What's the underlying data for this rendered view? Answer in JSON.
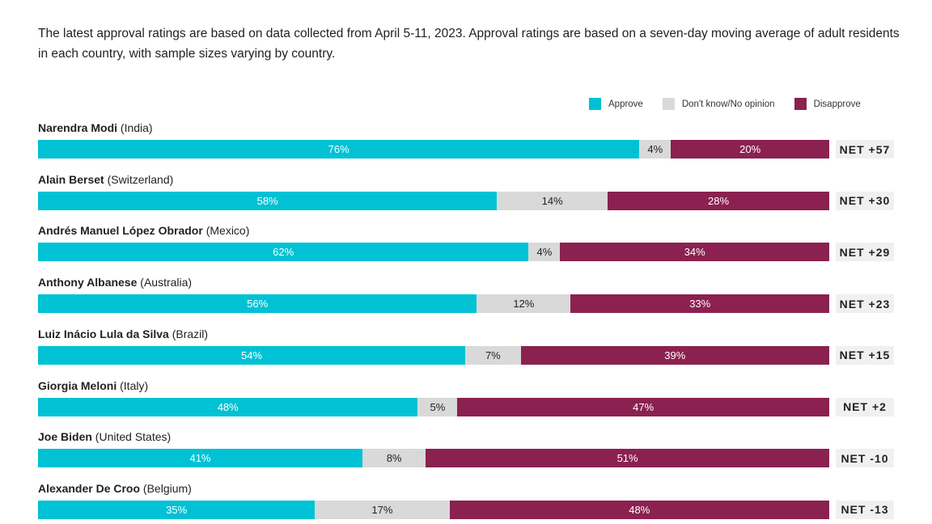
{
  "intro": "The latest approval ratings are based on data collected from April 5-11, 2023. Approval ratings are based on a seven-day moving average of adult residents in each country, with sample sizes varying by country.",
  "chart_data": {
    "type": "bar",
    "orientation": "horizontal-stacked",
    "legend": [
      {
        "name": "Approve",
        "color": "#00c2d4"
      },
      {
        "name": "Don't know/No opinion",
        "color": "#d9d9d9"
      },
      {
        "name": "Disapprove",
        "color": "#8b2150"
      }
    ],
    "legend_position": "top-right",
    "rows": [
      {
        "name": "Narendra Modi",
        "country": "(India)",
        "approve": 76,
        "dk": 4,
        "disapprove": 20,
        "net": "NET +57"
      },
      {
        "name": "Alain Berset",
        "country": "(Switzerland)",
        "approve": 58,
        "dk": 14,
        "disapprove": 28,
        "net": "NET +30"
      },
      {
        "name": "Andrés Manuel López Obrador",
        "country": "(Mexico)",
        "approve": 62,
        "dk": 4,
        "disapprove": 34,
        "net": "NET +29"
      },
      {
        "name": "Anthony Albanese",
        "country": "(Australia)",
        "approve": 56,
        "dk": 12,
        "disapprove": 33,
        "net": "NET +23"
      },
      {
        "name": "Luiz Inácio Lula da Silva",
        "country": "(Brazil)",
        "approve": 54,
        "dk": 7,
        "disapprove": 39,
        "net": "NET +15"
      },
      {
        "name": "Giorgia Meloni",
        "country": "(Italy)",
        "approve": 48,
        "dk": 5,
        "disapprove": 47,
        "net": "NET +2"
      },
      {
        "name": "Joe Biden",
        "country": "(United States)",
        "approve": 41,
        "dk": 8,
        "disapprove": 51,
        "net": "NET -10"
      },
      {
        "name": "Alexander De Croo",
        "country": "(Belgium)",
        "approve": 35,
        "dk": 17,
        "disapprove": 48,
        "net": "NET -13"
      }
    ]
  }
}
